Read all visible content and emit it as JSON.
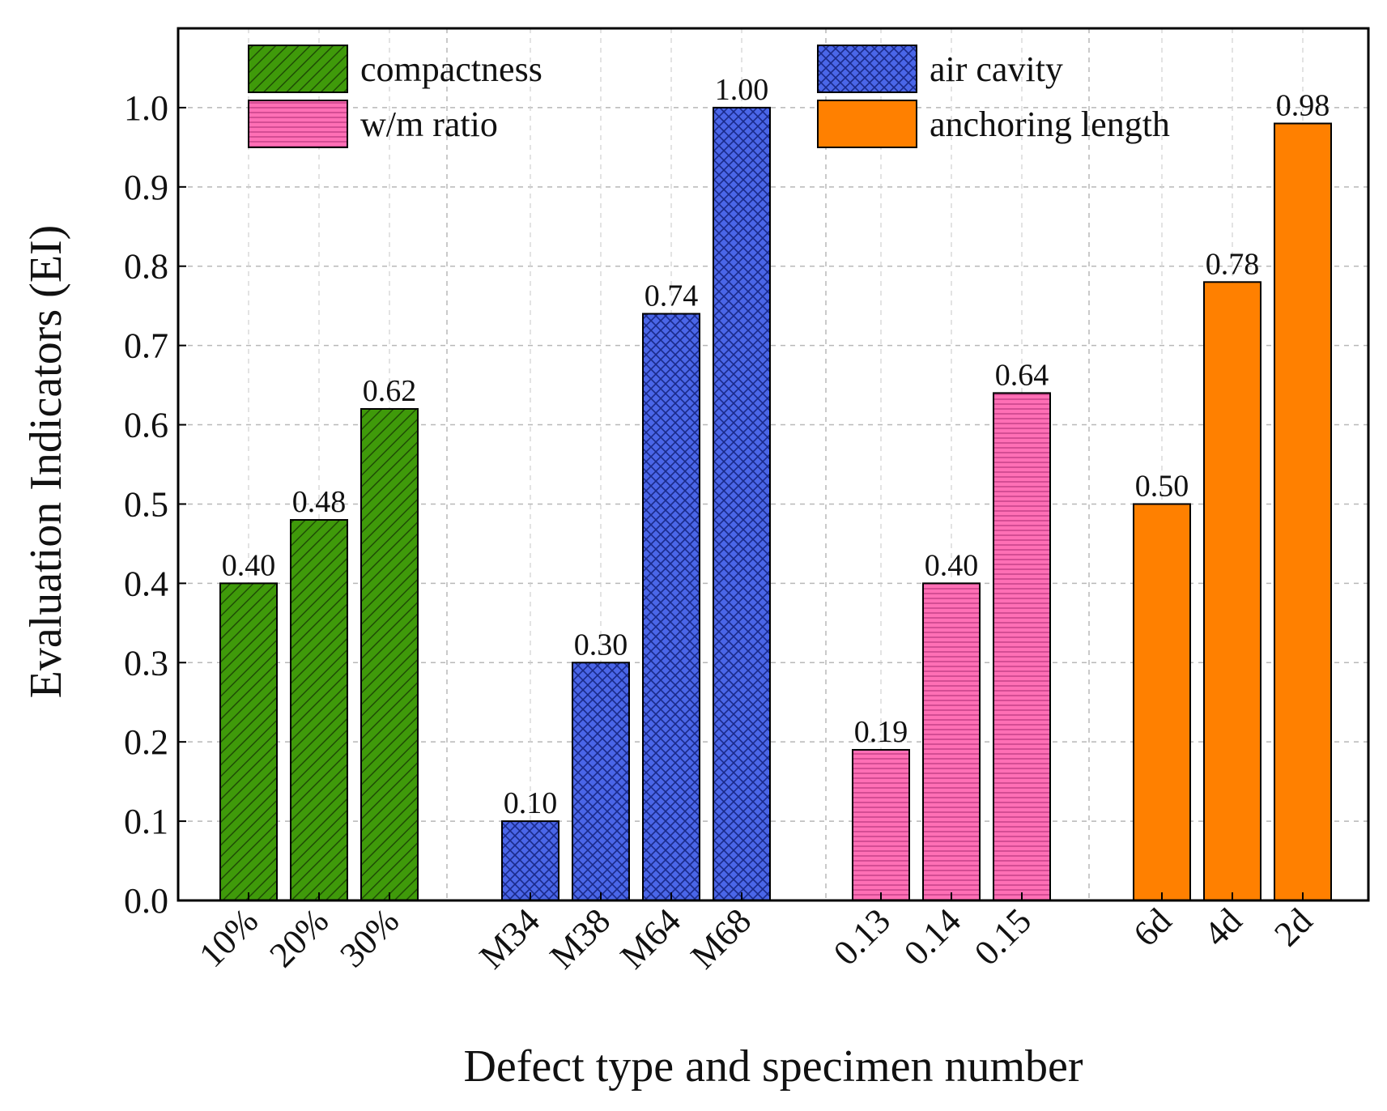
{
  "chart_data": {
    "type": "bar",
    "title": "",
    "xlabel": "Defect type and specimen number",
    "ylabel": "Evaluation Indicators (EI)",
    "ylim": [
      0,
      1.1
    ],
    "yticks": [
      "0.0",
      "0.1",
      "0.2",
      "0.3",
      "0.4",
      "0.5",
      "0.6",
      "0.7",
      "0.8",
      "0.9",
      "1.0"
    ],
    "grid": true,
    "legend_position": "top",
    "groups": [
      {
        "name": "compactness",
        "color": "#3f9a0a",
        "pattern": "diagonal",
        "categories": [
          "10%",
          "20%",
          "30%"
        ],
        "values": [
          0.4,
          0.48,
          0.62
        ],
        "labels": [
          "0.40",
          "0.48",
          "0.62"
        ]
      },
      {
        "name": "air cavity",
        "color": "#4a66e8",
        "pattern": "crosshatch",
        "categories": [
          "M34",
          "M38",
          "M64",
          "M68"
        ],
        "values": [
          0.1,
          0.3,
          0.74,
          1.0
        ],
        "labels": [
          "0.10",
          "0.30",
          "0.74",
          "1.00"
        ]
      },
      {
        "name": "w/m ratio",
        "color": "#ff6fb5",
        "pattern": "horizontal",
        "categories": [
          "0.13",
          "0.14",
          "0.15"
        ],
        "values": [
          0.19,
          0.4,
          0.64
        ],
        "labels": [
          "0.19",
          "0.40",
          "0.64"
        ]
      },
      {
        "name": "anchoring length",
        "color": "#ff8000",
        "pattern": "solid",
        "categories": [
          "6d",
          "4d",
          "2d"
        ],
        "values": [
          0.5,
          0.78,
          0.98
        ],
        "labels": [
          "0.50",
          "0.78",
          "0.98"
        ]
      }
    ]
  }
}
